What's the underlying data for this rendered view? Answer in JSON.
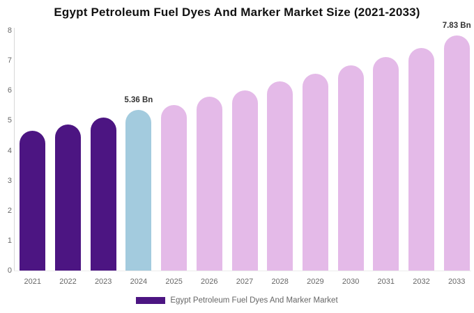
{
  "chart_data": {
    "type": "bar",
    "title": "Egypt Petroleum Fuel Dyes And Marker Market Size (2021-2033)",
    "categories": [
      "2021",
      "2022",
      "2023",
      "2024",
      "2025",
      "2026",
      "2027",
      "2028",
      "2029",
      "2030",
      "2031",
      "2032",
      "2033"
    ],
    "values": [
      4.66,
      4.87,
      5.09,
      5.36,
      5.52,
      5.79,
      6.01,
      6.3,
      6.56,
      6.84,
      7.13,
      7.42,
      7.83
    ],
    "unit": "Bn",
    "xlabel": "",
    "ylabel": "",
    "ylim": [
      0,
      8
    ],
    "yticks": [
      0,
      1,
      2,
      3,
      4,
      5,
      6,
      7,
      8
    ],
    "grid": false,
    "legend_position": "bottom",
    "bar_colors": [
      "#4C1582",
      "#4C1582",
      "#4C1582",
      "#A3CBDE",
      "#E4BAE8",
      "#E4BAE8",
      "#E4BAE8",
      "#E4BAE8",
      "#E4BAE8",
      "#E4BAE8",
      "#E4BAE8",
      "#E4BAE8",
      "#E4BAE8"
    ],
    "annotations": [
      {
        "category": "2024",
        "label": "5.36 Bn"
      },
      {
        "category": "2033",
        "label": "7.83 Bn"
      }
    ]
  },
  "legend": {
    "label": "Egypt Petroleum Fuel Dyes And Marker Market",
    "swatch_color": "#4C1582"
  },
  "colors": {
    "historical_bar": "#4C1582",
    "current_year_bar": "#A3CBDE",
    "forecast_bar": "#E4BAE8",
    "title_text": "#111111",
    "annotation_text": "#333333",
    "tick_label_text": "#666666",
    "y_axis_line": "#D8D8D8",
    "background": "#FFFFFF"
  }
}
